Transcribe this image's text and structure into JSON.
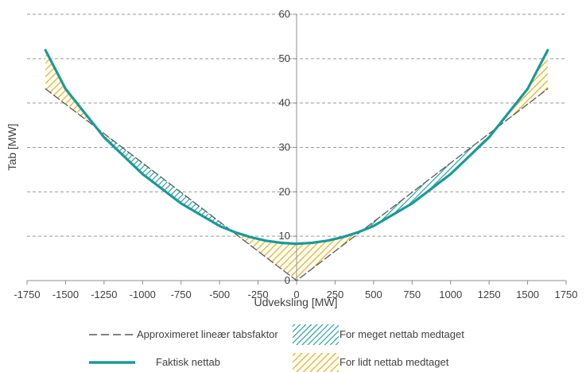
{
  "chart_data": {
    "type": "line",
    "xlabel": "Udveksling [MW]",
    "ylabel": "Tab [MW]",
    "xlim": [
      -1750,
      1750
    ],
    "ylim": [
      0,
      60
    ],
    "xticks": [
      -1750,
      -1500,
      -1250,
      -1000,
      -750,
      -500,
      -250,
      0,
      250,
      500,
      750,
      1000,
      1250,
      1500,
      1750
    ],
    "yticks": [
      0,
      10,
      20,
      30,
      40,
      50,
      60
    ],
    "grid": "horizontal dashed",
    "legend_position": "bottom",
    "series": [
      {
        "name": "Approximeret lineær tabsfaktor",
        "style": "dashed",
        "color": "#595959",
        "x": [
          -1630,
          0,
          1630
        ],
        "y": [
          43.2,
          0,
          43.2
        ]
      },
      {
        "name": "Faktisk nettab",
        "style": "solid",
        "color": "#1a9a96",
        "x": [
          -1630,
          -1500,
          -1250,
          -1000,
          -750,
          -500,
          -400,
          -300,
          -200,
          -100,
          0,
          100,
          200,
          300,
          400,
          500,
          750,
          1000,
          1250,
          1500,
          1630
        ],
        "y": [
          51.9,
          43.2,
          32.3,
          24.0,
          17.4,
          12.3,
          10.9,
          9.8,
          9.0,
          8.5,
          8.3,
          8.5,
          9.0,
          9.8,
          10.9,
          12.3,
          17.4,
          24.0,
          32.3,
          43.2,
          51.9
        ]
      }
    ],
    "shaded_areas": [
      {
        "name": "For meget nettab medtaget",
        "color": "#1a9a96",
        "pattern": "hatch"
      },
      {
        "name": "For lidt nettab medtaget",
        "color": "#e7b31e",
        "pattern": "hatch"
      }
    ]
  }
}
